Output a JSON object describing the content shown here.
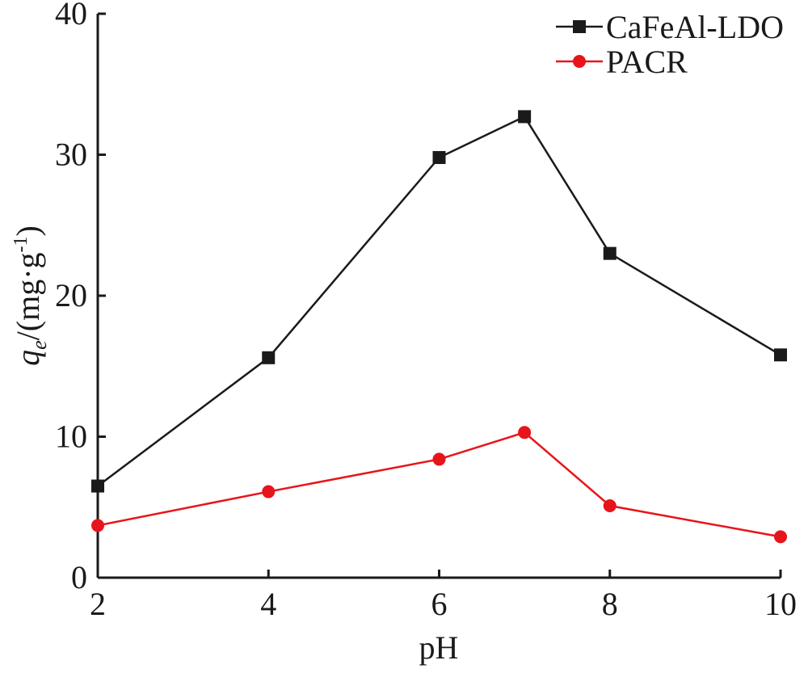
{
  "chart_data": {
    "type": "line",
    "x": [
      2,
      4,
      6,
      7,
      8,
      10
    ],
    "xlabel": "pH",
    "ylabel": {
      "q": "q",
      "sub": "e",
      "unit_start": "/(mg·g",
      "sup": "-1",
      "unit_end": ")"
    },
    "xlim": [
      2,
      10
    ],
    "ylim": [
      0,
      40
    ],
    "xticks": [
      2,
      4,
      6,
      8,
      10
    ],
    "yticks": [
      0,
      10,
      20,
      30,
      40
    ],
    "grid": false,
    "legend_position": "top-right",
    "series": [
      {
        "name": "CaFeAl-LDO",
        "color": "#1a1a1a",
        "marker": "square",
        "values": [
          6.5,
          15.6,
          29.8,
          32.7,
          23.0,
          15.8
        ]
      },
      {
        "name": "PACR",
        "color": "#e8141b",
        "marker": "circle",
        "values": [
          3.7,
          6.1,
          8.4,
          10.3,
          5.1,
          2.9
        ]
      }
    ]
  }
}
